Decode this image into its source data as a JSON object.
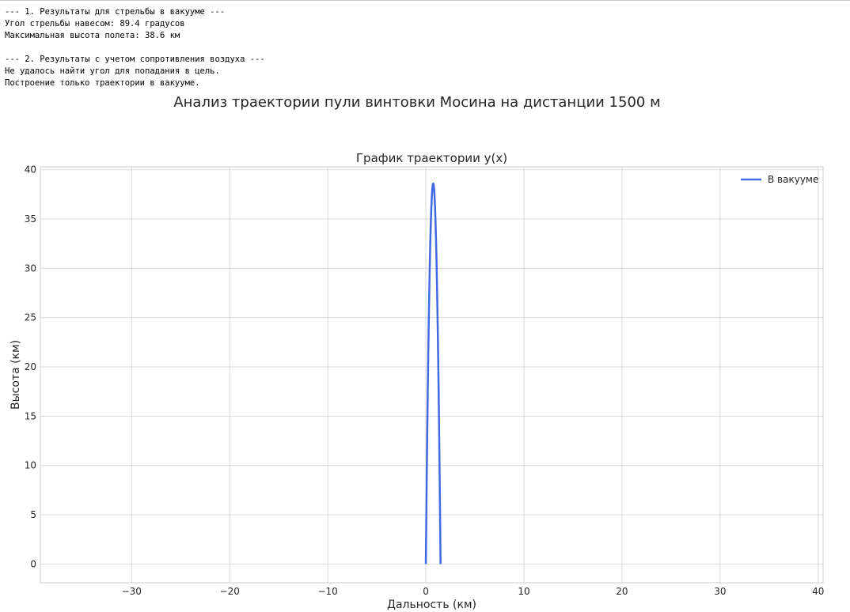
{
  "console": {
    "lines": [
      "--- 1. Результаты для стрельбы в вакууме ---",
      "Угол стрельбы навесом: 89.4 градусов",
      "Максимальная высота полета: 38.6 км",
      "",
      "--- 2. Результаты с учетом сопротивления воздуха ---",
      "Не удалось найти угол для попадания в цель.",
      "Построение только траектории в вакууме."
    ]
  },
  "figure": {
    "suptitle": "Анализ траектории пули винтовки Мосина на дистанции 1500 м"
  },
  "chart_data": {
    "type": "line",
    "title": "График траектории y(x)",
    "xlabel": "Дальность (км)",
    "ylabel": "Высота (км)",
    "xlim": [
      -39.3,
      40.5
    ],
    "ylim": [
      -1.9,
      40.3
    ],
    "xticks": [
      -30,
      -20,
      -10,
      0,
      10,
      20,
      30,
      40
    ],
    "yticks": [
      0,
      5,
      10,
      15,
      20,
      25,
      30,
      35,
      40
    ],
    "grid": true,
    "legend_position": "top-right",
    "series": [
      {
        "name": "В вакууме",
        "color": "#4169e1",
        "shape": "parabola",
        "x_start": 0,
        "x_end": 1.5,
        "y_max": 38.6
      }
    ]
  }
}
